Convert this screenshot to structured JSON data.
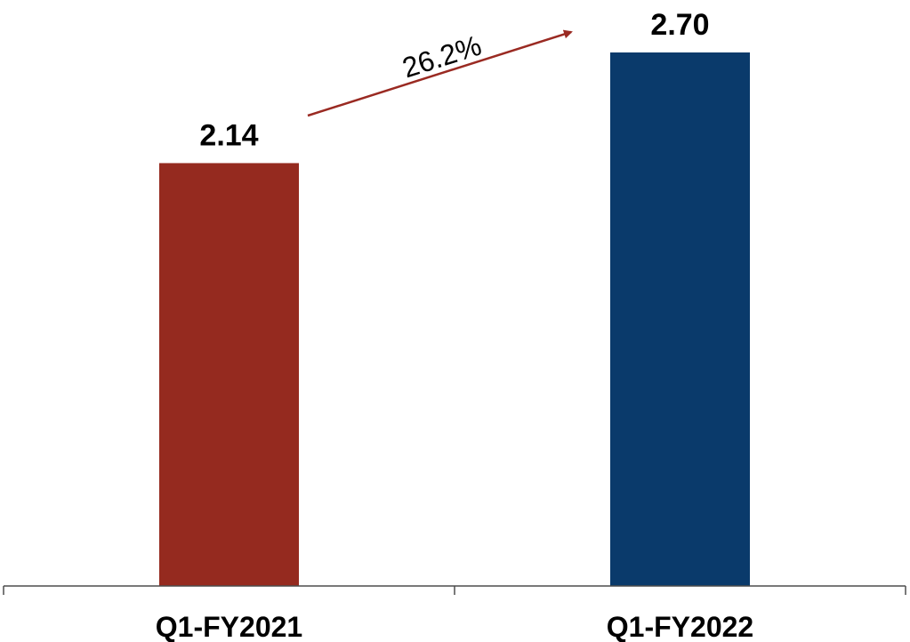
{
  "chart_data": {
    "type": "bar",
    "categories": [
      "Q1-FY2021",
      "Q1-FY2022"
    ],
    "values": [
      2.14,
      2.7
    ],
    "value_labels": [
      "2.14",
      "2.70"
    ],
    "bar_colors": [
      "#952a1f",
      "#0a3a6b"
    ],
    "ylim": [
      0,
      2.7
    ],
    "grid": false,
    "annotation": {
      "text": "26.2%",
      "color": "#9a2a22",
      "from_category": 0,
      "to_category": 1
    }
  }
}
